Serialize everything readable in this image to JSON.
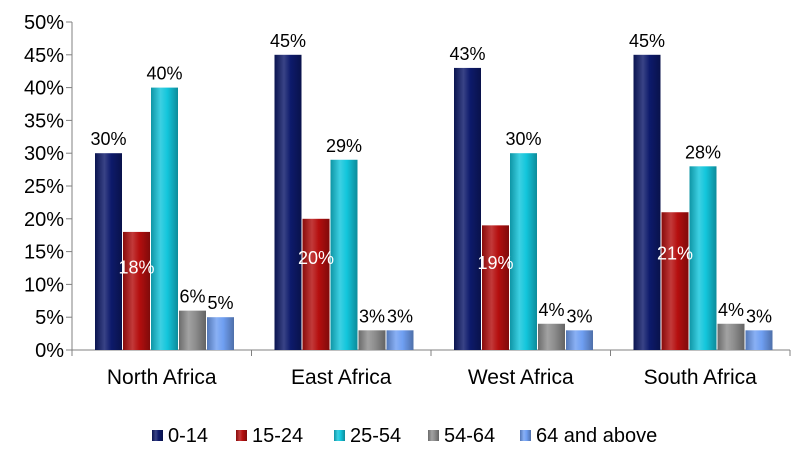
{
  "chart_data": {
    "type": "bar",
    "categories": [
      "North Africa",
      "East Africa",
      "West Africa",
      "South Africa"
    ],
    "series": [
      {
        "name": "0-14",
        "values": [
          30,
          45,
          43,
          45
        ],
        "color": "#0d1a6b",
        "label_inside": false
      },
      {
        "name": "15-24",
        "values": [
          18,
          20,
          19,
          21
        ],
        "color": "#b50f0f",
        "label_inside": true
      },
      {
        "name": "25-54",
        "values": [
          40,
          29,
          30,
          28
        ],
        "color": "#13c6dc",
        "label_inside": false
      },
      {
        "name": "54-64",
        "values": [
          6,
          3,
          4,
          4
        ],
        "color": "#8e8e8e",
        "label_inside": false
      },
      {
        "name": "64 and above",
        "values": [
          5,
          3,
          3,
          3
        ],
        "color": "#6f9ff2",
        "label_inside": false
      }
    ],
    "data_labels": [
      [
        "30%",
        "45%",
        "43%",
        "45%"
      ],
      [
        "18%",
        "20%",
        "19%",
        "21%"
      ],
      [
        "40%",
        "29%",
        "30%",
        "28%"
      ],
      [
        "6%",
        "3%",
        "4%",
        "4%"
      ],
      [
        "5%",
        "3%",
        "3%",
        "3%"
      ]
    ],
    "y_ticks": [
      "0%",
      "5%",
      "10%",
      "15%",
      "20%",
      "25%",
      "30%",
      "35%",
      "40%",
      "45%",
      "50%"
    ],
    "ylim": [
      0,
      50
    ],
    "grid": false,
    "legend_position": "bottom"
  }
}
